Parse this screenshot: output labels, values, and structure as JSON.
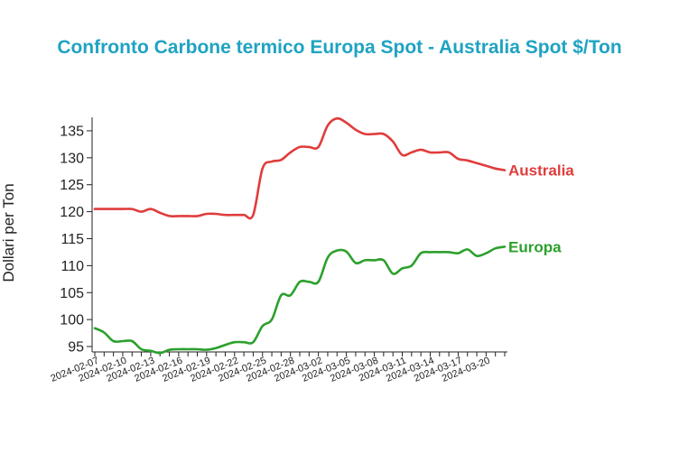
{
  "chart_data": {
    "type": "line",
    "title": "Confronto Carbone termico Europa Spot - Australia Spot $/Ton",
    "ylabel": "Dollari per Ton",
    "xlabel": "",
    "ylim": [
      94,
      137.5
    ],
    "yticks": [
      95,
      100,
      105,
      110,
      115,
      120,
      125,
      130,
      135
    ],
    "x": [
      "2024-02-07",
      "2024-02-08",
      "2024-02-09",
      "2024-02-10",
      "2024-02-11",
      "2024-02-12",
      "2024-02-13",
      "2024-02-14",
      "2024-02-15",
      "2024-02-16",
      "2024-02-17",
      "2024-02-18",
      "2024-02-19",
      "2024-02-20",
      "2024-02-21",
      "2024-02-22",
      "2024-02-23",
      "2024-02-24",
      "2024-02-25",
      "2024-02-26",
      "2024-02-27",
      "2024-02-28",
      "2024-02-29",
      "2024-03-01",
      "2024-03-02",
      "2024-03-03",
      "2024-03-04",
      "2024-03-05",
      "2024-03-06",
      "2024-03-07",
      "2024-03-08",
      "2024-03-09",
      "2024-03-10",
      "2024-03-11",
      "2024-03-12",
      "2024-03-13",
      "2024-03-14",
      "2024-03-15",
      "2024-03-16",
      "2024-03-17",
      "2024-03-18",
      "2024-03-19",
      "2024-03-20",
      "2024-03-21",
      "2024-03-22"
    ],
    "xtick_labels": [
      "2024-02-07",
      "2024-02-10",
      "2024-02-13",
      "2024-02-16",
      "2024-02-19",
      "2024-02-22",
      "2024-02-25",
      "2024-02-28",
      "2024-03-02",
      "2024-03-05",
      "2024-03-08",
      "2024-03-11",
      "2024-03-14",
      "2024-03-17",
      "2024-03-20"
    ],
    "series": [
      {
        "name": "Australia",
        "color": "#e03c3c",
        "values": [
          120.5,
          120.5,
          120.5,
          120.5,
          120.5,
          120.0,
          120.5,
          119.8,
          119.2,
          119.2,
          119.2,
          119.2,
          119.6,
          119.6,
          119.4,
          119.4,
          119.4,
          119.4,
          128.0,
          129.3,
          129.6,
          131.0,
          132.0,
          132.0,
          132.0,
          136.0,
          137.3,
          136.5,
          135.2,
          134.4,
          134.4,
          134.4,
          133.0,
          130.5,
          131.0,
          131.5,
          131.0,
          131.0,
          131.0,
          129.8,
          129.5,
          129.0,
          128.5,
          128.0,
          127.7
        ]
      },
      {
        "name": "Europa",
        "color": "#2ca02c",
        "values": [
          98.4,
          97.6,
          96.0,
          96.0,
          96.0,
          94.5,
          94.2,
          93.8,
          94.4,
          94.5,
          94.5,
          94.5,
          94.4,
          94.7,
          95.3,
          95.8,
          95.8,
          95.8,
          98.8,
          100.0,
          104.5,
          104.5,
          107.0,
          107.0,
          107.0,
          111.5,
          112.8,
          112.6,
          110.5,
          111.0,
          111.0,
          111.0,
          108.5,
          109.5,
          110.0,
          112.3,
          112.5,
          112.5,
          112.5,
          112.3,
          113.0,
          111.8,
          112.3,
          113.2,
          113.5
        ]
      }
    ],
    "title_color": "#1fa3c2",
    "grid": false,
    "legend": "inline-right"
  }
}
